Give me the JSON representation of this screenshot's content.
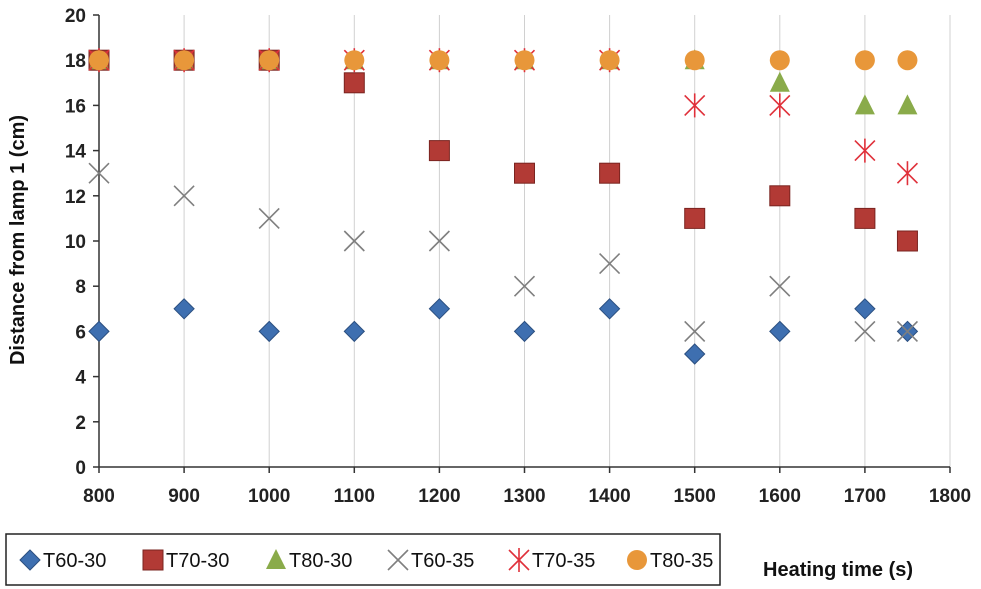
{
  "chart_data": {
    "type": "scatter",
    "xlabel": "Heating time (s)",
    "ylabel": "Distance from lamp 1 (cm)",
    "xlim": [
      800,
      1800
    ],
    "ylim": [
      0,
      20
    ],
    "xticks": [
      800,
      900,
      1000,
      1100,
      1200,
      1300,
      1400,
      1500,
      1600,
      1700,
      1800
    ],
    "yticks": [
      0,
      2,
      4,
      6,
      8,
      10,
      12,
      14,
      16,
      18,
      20
    ],
    "grid": "vertical",
    "legend_position": "bottom-left",
    "series": [
      {
        "name": "T60-30",
        "marker": "diamond",
        "color": "#3e6fb0",
        "points": [
          [
            800,
            6
          ],
          [
            900,
            7
          ],
          [
            1000,
            6
          ],
          [
            1100,
            6
          ],
          [
            1200,
            7
          ],
          [
            1300,
            6
          ],
          [
            1400,
            7
          ],
          [
            1500,
            5
          ],
          [
            1600,
            6
          ],
          [
            1700,
            7
          ],
          [
            1750,
            6
          ]
        ]
      },
      {
        "name": "T70-30",
        "marker": "square",
        "color": "#b23a35",
        "points": [
          [
            800,
            18
          ],
          [
            900,
            18
          ],
          [
            1000,
            18
          ],
          [
            1100,
            17
          ],
          [
            1200,
            14
          ],
          [
            1300,
            13
          ],
          [
            1400,
            13
          ],
          [
            1500,
            11
          ],
          [
            1600,
            12
          ],
          [
            1700,
            11
          ],
          [
            1750,
            10
          ]
        ]
      },
      {
        "name": "T80-30",
        "marker": "triangle",
        "color": "#8aab4a",
        "points": [
          [
            800,
            18
          ],
          [
            900,
            18
          ],
          [
            1000,
            18
          ],
          [
            1100,
            18
          ],
          [
            1200,
            18
          ],
          [
            1300,
            18
          ],
          [
            1400,
            18
          ],
          [
            1500,
            18
          ],
          [
            1600,
            17
          ],
          [
            1700,
            16
          ],
          [
            1750,
            16
          ]
        ]
      },
      {
        "name": "T60-35",
        "marker": "x",
        "color": "#7f7f7f",
        "points": [
          [
            800,
            13
          ],
          [
            900,
            12
          ],
          [
            1000,
            11
          ],
          [
            1100,
            10
          ],
          [
            1200,
            10
          ],
          [
            1300,
            8
          ],
          [
            1400,
            9
          ],
          [
            1500,
            6
          ],
          [
            1600,
            8
          ],
          [
            1700,
            6
          ],
          [
            1750,
            6
          ]
        ]
      },
      {
        "name": "T70-35",
        "marker": "star",
        "color": "#e0303a",
        "points": [
          [
            800,
            18
          ],
          [
            900,
            18
          ],
          [
            1000,
            18
          ],
          [
            1100,
            18
          ],
          [
            1200,
            18
          ],
          [
            1300,
            18
          ],
          [
            1400,
            18
          ],
          [
            1500,
            16
          ],
          [
            1600,
            16
          ],
          [
            1700,
            14
          ],
          [
            1750,
            13
          ]
        ]
      },
      {
        "name": "T80-35",
        "marker": "circle",
        "color": "#e8973a",
        "points": [
          [
            800,
            18
          ],
          [
            900,
            18
          ],
          [
            1000,
            18
          ],
          [
            1100,
            18
          ],
          [
            1200,
            18
          ],
          [
            1300,
            18
          ],
          [
            1400,
            18
          ],
          [
            1500,
            18
          ],
          [
            1600,
            18
          ],
          [
            1700,
            18
          ],
          [
            1750,
            18
          ]
        ]
      }
    ]
  }
}
